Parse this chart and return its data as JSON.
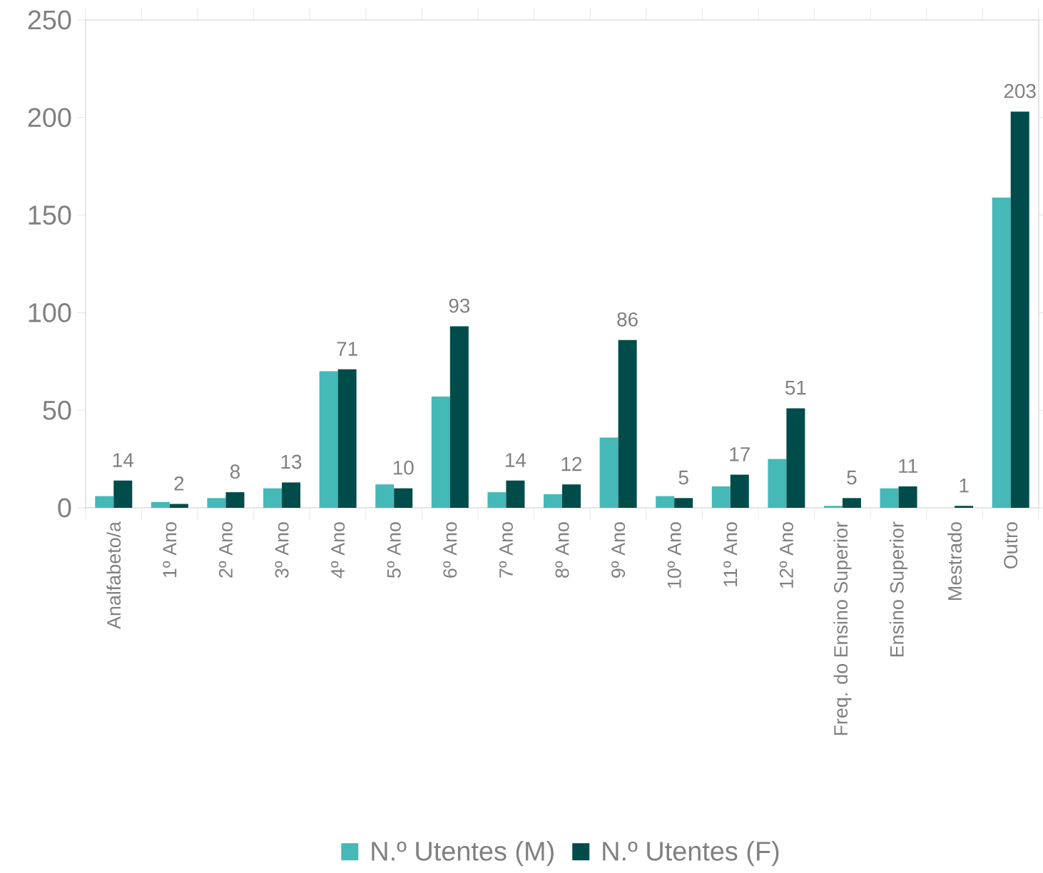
{
  "chart_data": {
    "type": "bar",
    "categories": [
      "Analfabeto/a",
      "1º Ano",
      "2º Ano",
      "3º Ano",
      "4º Ano",
      "5º Ano",
      "6º Ano",
      "7º Ano",
      "8º Ano",
      "9º Ano",
      "10º Ano",
      "11º Ano",
      "12º Ano",
      "Freq. do Ensino Superior",
      "Ensino Superior",
      "Mestrado",
      "Outro"
    ],
    "series": [
      {
        "name": "N.º Utentes (M)",
        "color": "#45b8b8",
        "values": [
          6,
          3,
          5,
          10,
          70,
          12,
          57,
          8,
          7,
          36,
          6,
          11,
          25,
          1,
          10,
          0,
          159
        ]
      },
      {
        "name": "N.º Utentes (F)",
        "color": "#004c4a",
        "values": [
          14,
          2,
          8,
          13,
          71,
          10,
          93,
          14,
          12,
          86,
          5,
          17,
          51,
          5,
          11,
          1,
          203
        ],
        "value_labels": [
          "14",
          "2",
          "8",
          "13",
          "71",
          "10",
          "93",
          "14",
          "12",
          "86",
          "5",
          "17",
          "51",
          "5",
          "11",
          "1",
          "203"
        ]
      }
    ],
    "ylim": [
      0,
      250
    ],
    "yticks": [
      0,
      50,
      100,
      150,
      200,
      250
    ],
    "legend": "bottom"
  }
}
